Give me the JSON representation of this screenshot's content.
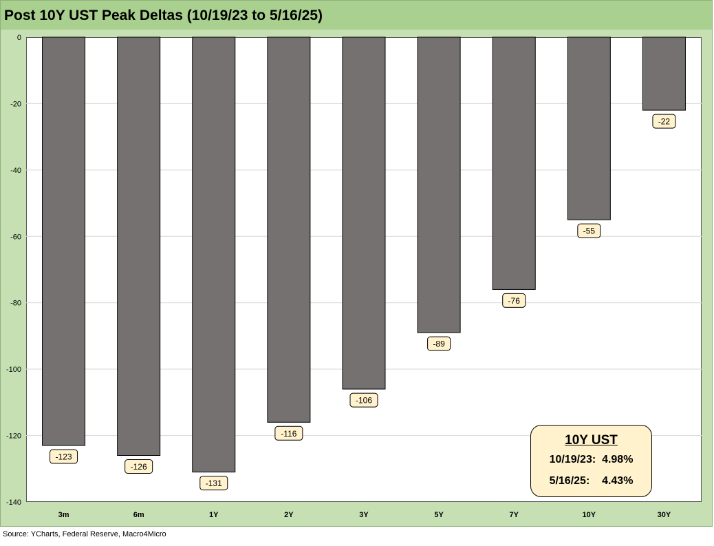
{
  "title": "Post 10Y UST Peak Deltas (10/19/23 to 5/16/25)",
  "source": "Source: YCharts, Federal Reserve, Macro4Micro",
  "info_box": {
    "title": "10Y UST",
    "row1_label": "10/19/23:",
    "row1_value": "4.98%",
    "row2_label": "5/16/25:",
    "row2_value": "4.43%"
  },
  "colors": {
    "bar": "#767171",
    "label_fill": "#fff2cc",
    "frame": "#c6e0b4",
    "title_bar": "#a9d08e"
  },
  "chart_data": {
    "type": "bar",
    "categories": [
      "3m",
      "6m",
      "1Y",
      "2Y",
      "3Y",
      "5Y",
      "7Y",
      "10Y",
      "30Y"
    ],
    "values": [
      -123,
      -126,
      -131,
      -116,
      -106,
      -89,
      -76,
      -55,
      -22
    ],
    "data_labels": [
      "-123",
      "-126",
      "-131",
      "-116",
      "-106",
      "-89",
      "-76",
      "-55",
      "-22"
    ],
    "title": "Post 10Y UST Peak Deltas (10/19/23 to 5/16/25)",
    "xlabel": "",
    "ylabel": "",
    "ylim": [
      -140,
      0
    ],
    "yticks": [
      0,
      -20,
      -40,
      -60,
      -80,
      -100,
      -120,
      -140
    ],
    "grid": true,
    "legend": "none"
  }
}
